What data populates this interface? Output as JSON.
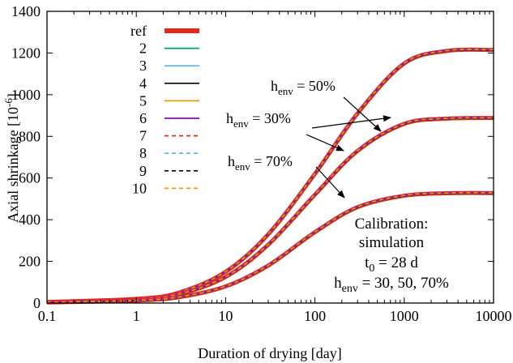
{
  "chart_data": {
    "type": "line",
    "xlabel": "Duration of drying [day]",
    "ylabel_main": "Axial shrinkage [10",
    "ylabel_exp": "-6",
    "ylabel_close": "]",
    "xscale": "log",
    "xlim": [
      0.1,
      10000
    ],
    "ylim": [
      0,
      1400
    ],
    "xticks": [
      0.1,
      1,
      10,
      100,
      1000,
      10000
    ],
    "xtick_labels": [
      "0.1",
      "1",
      "10",
      "100",
      "1000",
      "10000"
    ],
    "yticks": [
      0,
      200,
      400,
      600,
      800,
      1000,
      1200,
      1400
    ],
    "ytick_labels": [
      "0",
      "200",
      "400",
      "600",
      "800",
      "1000",
      "1200",
      "1400"
    ],
    "grid": false,
    "legend_position": "top-left",
    "legend": [
      {
        "label": "ref",
        "color": "#e8281e",
        "style": "solid",
        "thick": true
      },
      {
        "label": "2",
        "color": "#009e73",
        "style": "solid"
      },
      {
        "label": "3",
        "color": "#56b4e9",
        "style": "solid"
      },
      {
        "label": "4",
        "color": "#000000",
        "style": "solid"
      },
      {
        "label": "5",
        "color": "#e69f00",
        "style": "solid"
      },
      {
        "label": "6",
        "color": "#9400d3",
        "style": "solid"
      },
      {
        "label": "7",
        "color": "#e8281e",
        "style": "dashed"
      },
      {
        "label": "8",
        "color": "#56b4e9",
        "style": "dashed"
      },
      {
        "label": "9",
        "color": "#000000",
        "style": "dashed"
      },
      {
        "label": "10",
        "color": "#e69f00",
        "style": "dashed"
      }
    ],
    "curves": [
      {
        "group": "h_env = 50%",
        "x": [
          0.1,
          1,
          3,
          10,
          30,
          100,
          300,
          1000,
          3000,
          10000
        ],
        "y": [
          5,
          20,
          50,
          150,
          330,
          620,
          910,
          1150,
          1210,
          1215
        ]
      },
      {
        "group": "h_env = 30%",
        "x": [
          0.1,
          1,
          3,
          10,
          30,
          100,
          300,
          1000,
          3000,
          10000
        ],
        "y": [
          5,
          18,
          42,
          125,
          280,
          520,
          730,
          860,
          885,
          888
        ]
      },
      {
        "group": "h_env = 70%",
        "x": [
          0.1,
          1,
          3,
          10,
          30,
          100,
          300,
          1000,
          3000,
          10000
        ],
        "y": [
          3,
          12,
          28,
          80,
          180,
          340,
          460,
          515,
          527,
          528
        ]
      }
    ],
    "annotations": [
      {
        "base": "h",
        "sub": "env",
        "rest": " = 50%"
      },
      {
        "base": "h",
        "sub": "env",
        "rest": " = 30%"
      },
      {
        "base": "h",
        "sub": "env",
        "rest": " = 70%"
      }
    ],
    "calibration_text": {
      "line1": "Calibration:",
      "line2": "simulation",
      "line3_base": "t",
      "line3_sub": "0",
      "line3_rest": " = 28 d",
      "line4_base": "h",
      "line4_sub": "env",
      "line4_rest": " = 30, 50, 70%"
    }
  }
}
